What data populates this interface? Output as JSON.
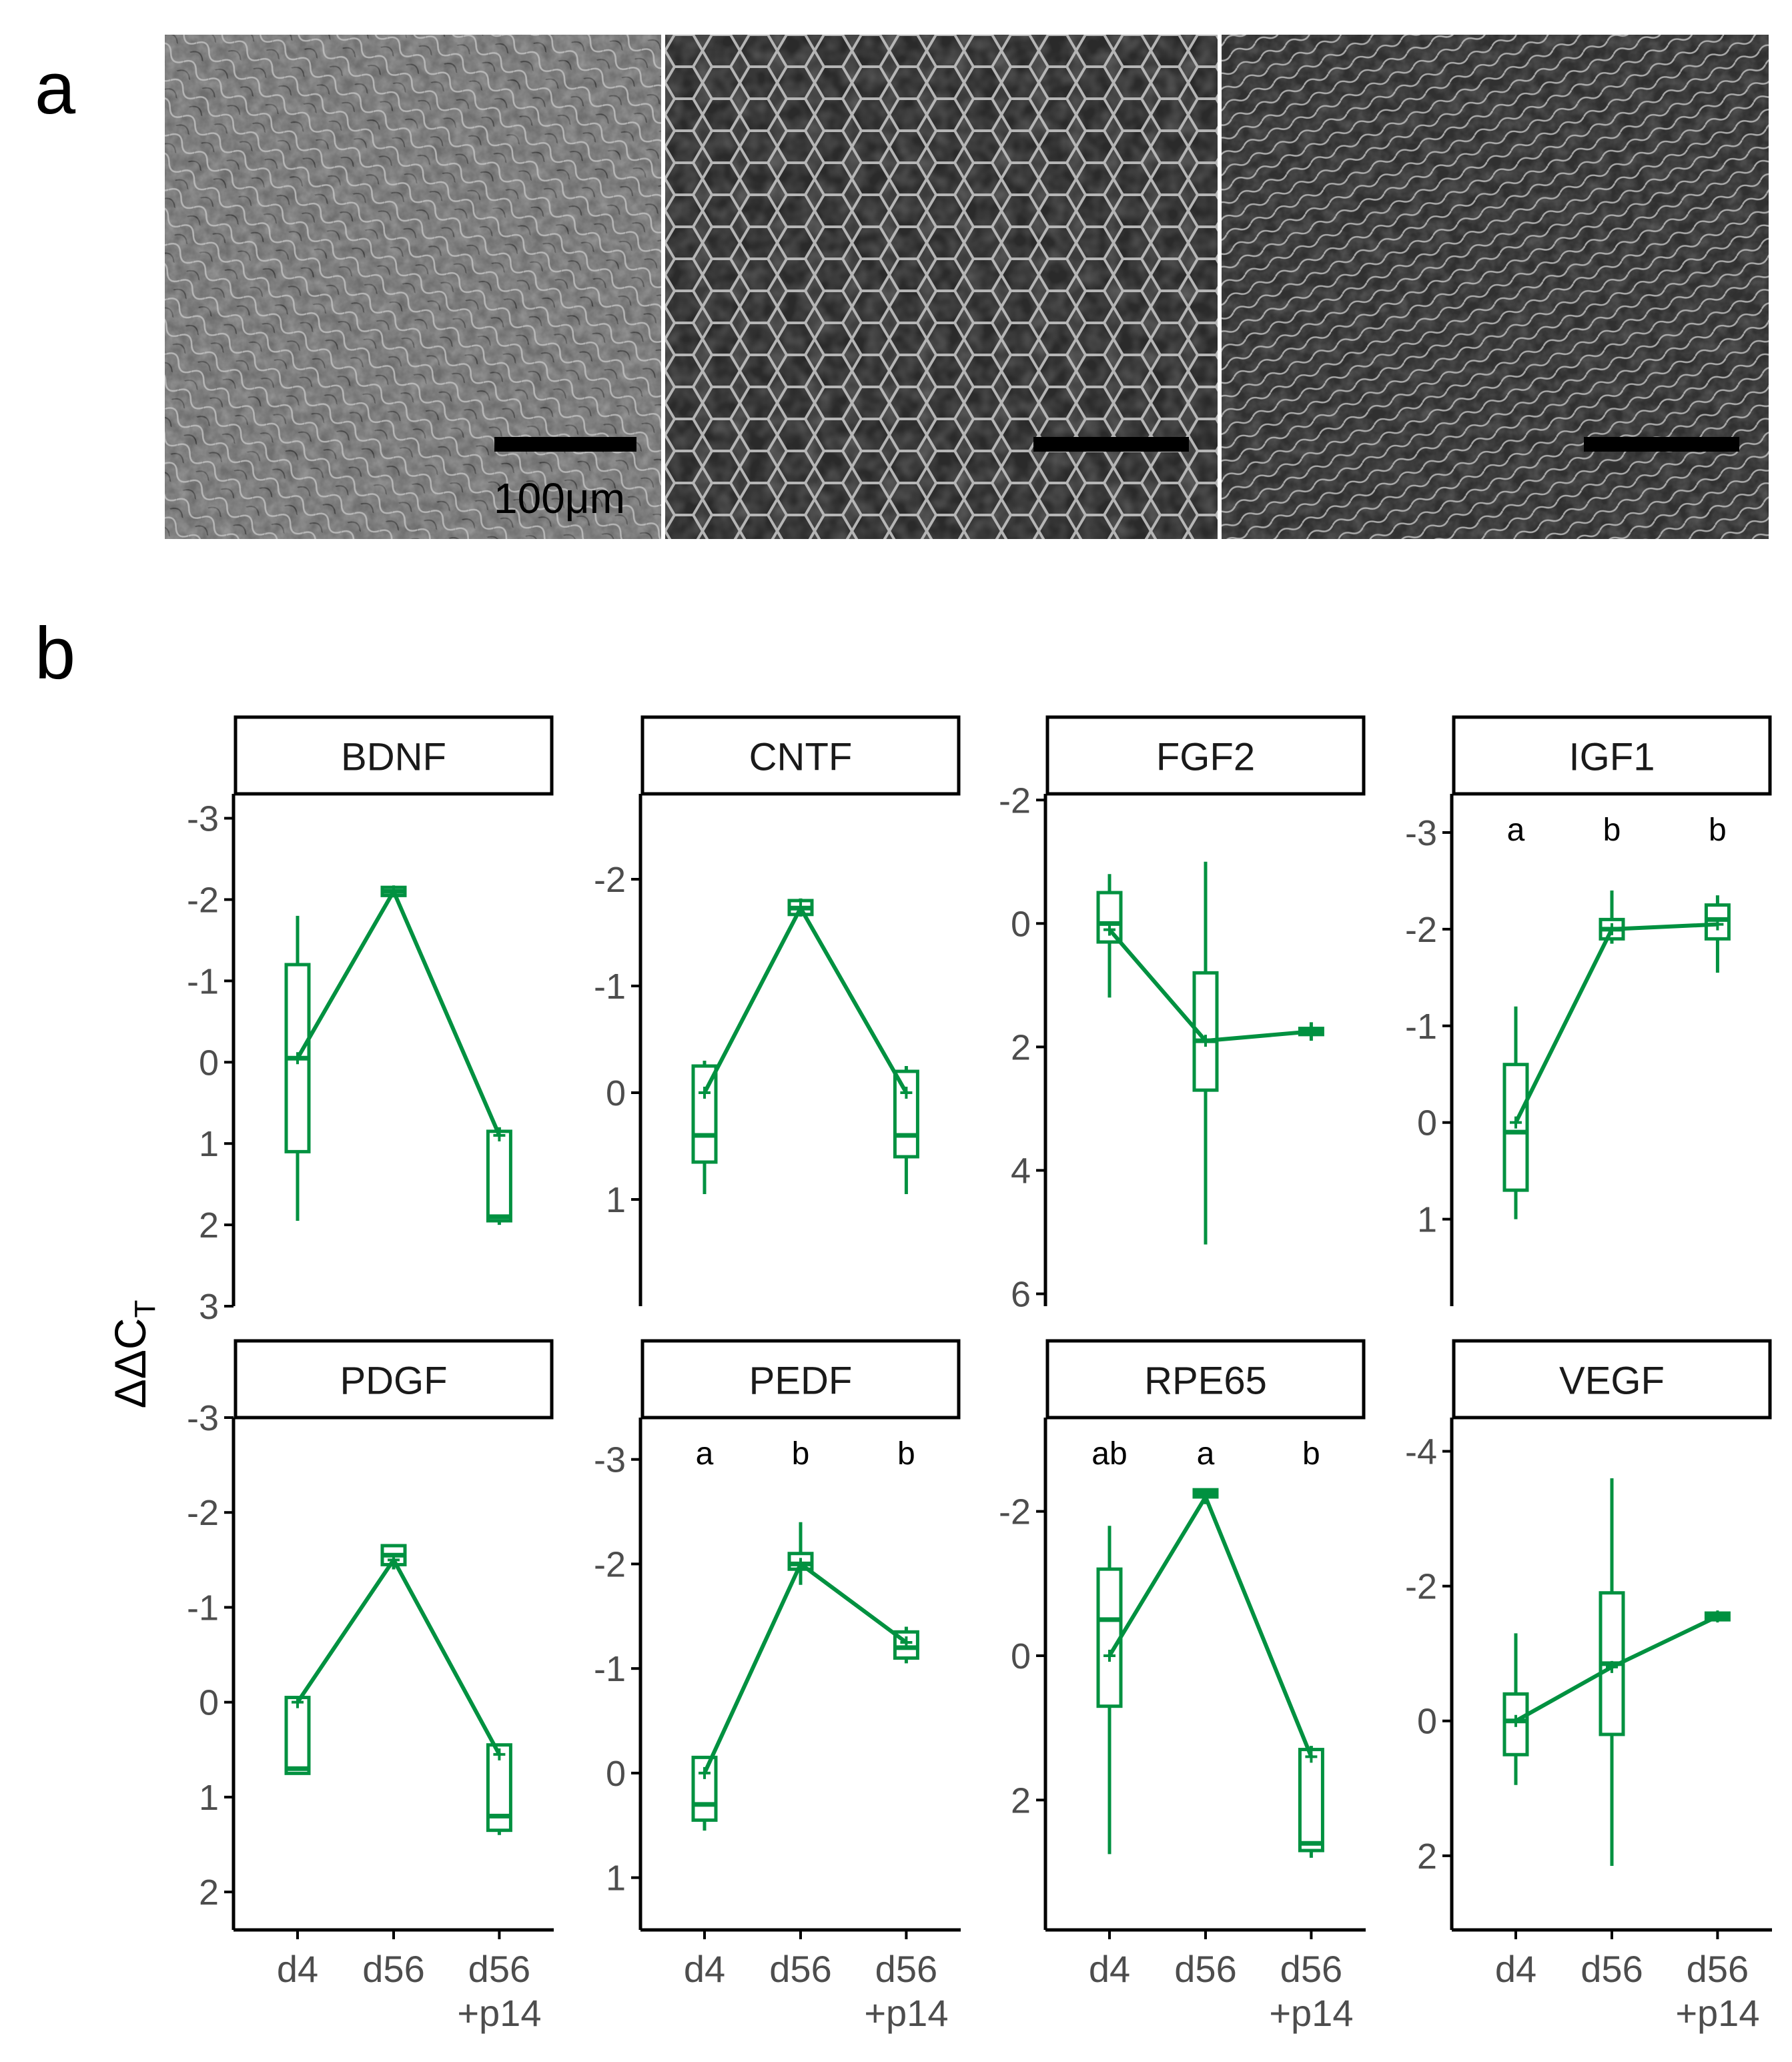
{
  "panel_a": {
    "label": "a",
    "images": [
      "phase-contrast d4",
      "phase-contrast d56",
      "phase-contrast d56+p14"
    ],
    "scale_bar_label": "100μm"
  },
  "panel_b": {
    "label": "b"
  },
  "colors": {
    "series": "#009140",
    "axis": "#000000",
    "tick_text": "#4d4d4d"
  },
  "chart_data": {
    "type": "line",
    "ylabel_main": "ΔΔC",
    "ylabel_sub": "T",
    "categories": [
      "d4",
      "d56",
      "d56\n+p14"
    ],
    "category_lines": [
      [
        "d4"
      ],
      [
        "d56"
      ],
      [
        "d56",
        "+p14"
      ]
    ],
    "y_inverted": true,
    "panels": [
      {
        "title": "BDNF",
        "ylim": [
          3,
          -3.3
        ],
        "ticks": [
          -3,
          -2,
          -1,
          0,
          1,
          2,
          3
        ],
        "means": [
          -0.05,
          -2.1,
          0.9
        ],
        "boxes": [
          {
            "lo": -1.2,
            "hi": 1.1,
            "med": -0.05,
            "wlo": -1.8,
            "whi": 1.95
          },
          {
            "lo": -2.15,
            "hi": -2.05,
            "med": -2.1,
            "wlo": -2.17,
            "whi": -2.05
          },
          {
            "lo": 0.85,
            "hi": 1.95,
            "med": 1.9,
            "wlo": 0.8,
            "whi": 2.0
          }
        ],
        "letters": []
      },
      {
        "title": "CNTF",
        "ylim": [
          2.0,
          -2.8
        ],
        "ticks": [
          -2,
          -1,
          0,
          1
        ],
        "means": [
          0.0,
          -1.73,
          0.0
        ],
        "boxes": [
          {
            "lo": -0.25,
            "hi": 0.65,
            "med": 0.4,
            "wlo": -0.3,
            "whi": 0.95
          },
          {
            "lo": -1.8,
            "hi": -1.67,
            "med": -1.73,
            "wlo": -1.82,
            "whi": -1.65
          },
          {
            "lo": -0.2,
            "hi": 0.6,
            "med": 0.4,
            "wlo": -0.25,
            "whi": 0.95
          }
        ],
        "letters": []
      },
      {
        "title": "FGF2",
        "ylim": [
          6.2,
          -2.1
        ],
        "ticks": [
          -2,
          0,
          2,
          4,
          6
        ],
        "means": [
          0.1,
          1.9,
          1.75
        ],
        "boxes": [
          {
            "lo": -0.5,
            "hi": 0.3,
            "med": 0.0,
            "wlo": -0.8,
            "whi": 1.2
          },
          {
            "lo": 0.8,
            "hi": 2.7,
            "med": 1.9,
            "wlo": -1.0,
            "whi": 5.2
          },
          {
            "lo": 1.7,
            "hi": 1.8,
            "med": 1.75,
            "wlo": 1.6,
            "whi": 1.9
          }
        ],
        "letters": []
      },
      {
        "title": "IGF1",
        "ylim": [
          1.9,
          -3.4
        ],
        "ticks": [
          -3,
          -2,
          -1,
          0,
          1
        ],
        "means": [
          0.0,
          -2.0,
          -2.05
        ],
        "boxes": [
          {
            "lo": -0.6,
            "hi": 0.7,
            "med": 0.1,
            "wlo": -1.2,
            "whi": 1.0
          },
          {
            "lo": -2.1,
            "hi": -1.9,
            "med": -2.0,
            "wlo": -2.4,
            "whi": -1.85
          },
          {
            "lo": -2.25,
            "hi": -1.9,
            "med": -2.1,
            "wlo": -2.35,
            "whi": -1.55
          }
        ],
        "letters": [
          "a",
          "b",
          "b"
        ]
      },
      {
        "title": "PDGF",
        "ylim": [
          2.4,
          -3.0
        ],
        "ticks": [
          -3,
          -2,
          -1,
          0,
          1,
          2
        ],
        "means": [
          0.0,
          -1.5,
          0.55
        ],
        "boxes": [
          {
            "lo": -0.05,
            "hi": 0.75,
            "med": 0.7,
            "wlo": -0.05,
            "whi": 0.75
          },
          {
            "lo": -1.65,
            "hi": -1.45,
            "med": -1.55,
            "wlo": -1.65,
            "whi": -1.4
          },
          {
            "lo": 0.45,
            "hi": 1.35,
            "med": 1.2,
            "wlo": 0.45,
            "whi": 1.4
          }
        ],
        "letters": []
      },
      {
        "title": "PEDF",
        "ylim": [
          1.5,
          -3.4
        ],
        "ticks": [
          -3,
          -2,
          -1,
          0,
          1
        ],
        "means": [
          0.0,
          -2.0,
          -1.25
        ],
        "boxes": [
          {
            "lo": -0.15,
            "hi": 0.45,
            "med": 0.3,
            "wlo": -0.15,
            "whi": 0.55
          },
          {
            "lo": -2.1,
            "hi": -1.95,
            "med": -2.0,
            "wlo": -2.4,
            "whi": -1.8
          },
          {
            "lo": -1.35,
            "hi": -1.1,
            "med": -1.2,
            "wlo": -1.4,
            "whi": -1.05
          }
        ],
        "letters": [
          "a",
          "b",
          "b"
        ]
      },
      {
        "title": "RPE65",
        "ylim": [
          3.8,
          -3.3
        ],
        "ticks": [
          -2,
          0,
          2
        ],
        "means": [
          0.0,
          -2.2,
          1.4
        ],
        "boxes": [
          {
            "lo": -1.2,
            "hi": 0.7,
            "med": -0.5,
            "wlo": -1.8,
            "whi": 2.75
          },
          {
            "lo": -2.3,
            "hi": -2.2,
            "med": -2.25,
            "wlo": -2.3,
            "whi": -2.1
          },
          {
            "lo": 1.3,
            "hi": 2.7,
            "med": 2.6,
            "wlo": 1.25,
            "whi": 2.8
          }
        ],
        "letters": [
          "ab",
          "a",
          "b"
        ]
      },
      {
        "title": "VEGF",
        "ylim": [
          3.1,
          -4.5
        ],
        "ticks": [
          -4,
          -2,
          0,
          2
        ],
        "means": [
          0.0,
          -0.8,
          -1.55
        ],
        "boxes": [
          {
            "lo": -0.4,
            "hi": 0.5,
            "med": 0.0,
            "wlo": -1.3,
            "whi": 0.95
          },
          {
            "lo": -1.9,
            "hi": 0.2,
            "med": -0.85,
            "wlo": -3.6,
            "whi": 2.15
          },
          {
            "lo": -1.6,
            "hi": -1.5,
            "med": -1.55,
            "wlo": -1.62,
            "whi": -1.48
          }
        ],
        "letters": []
      }
    ]
  }
}
